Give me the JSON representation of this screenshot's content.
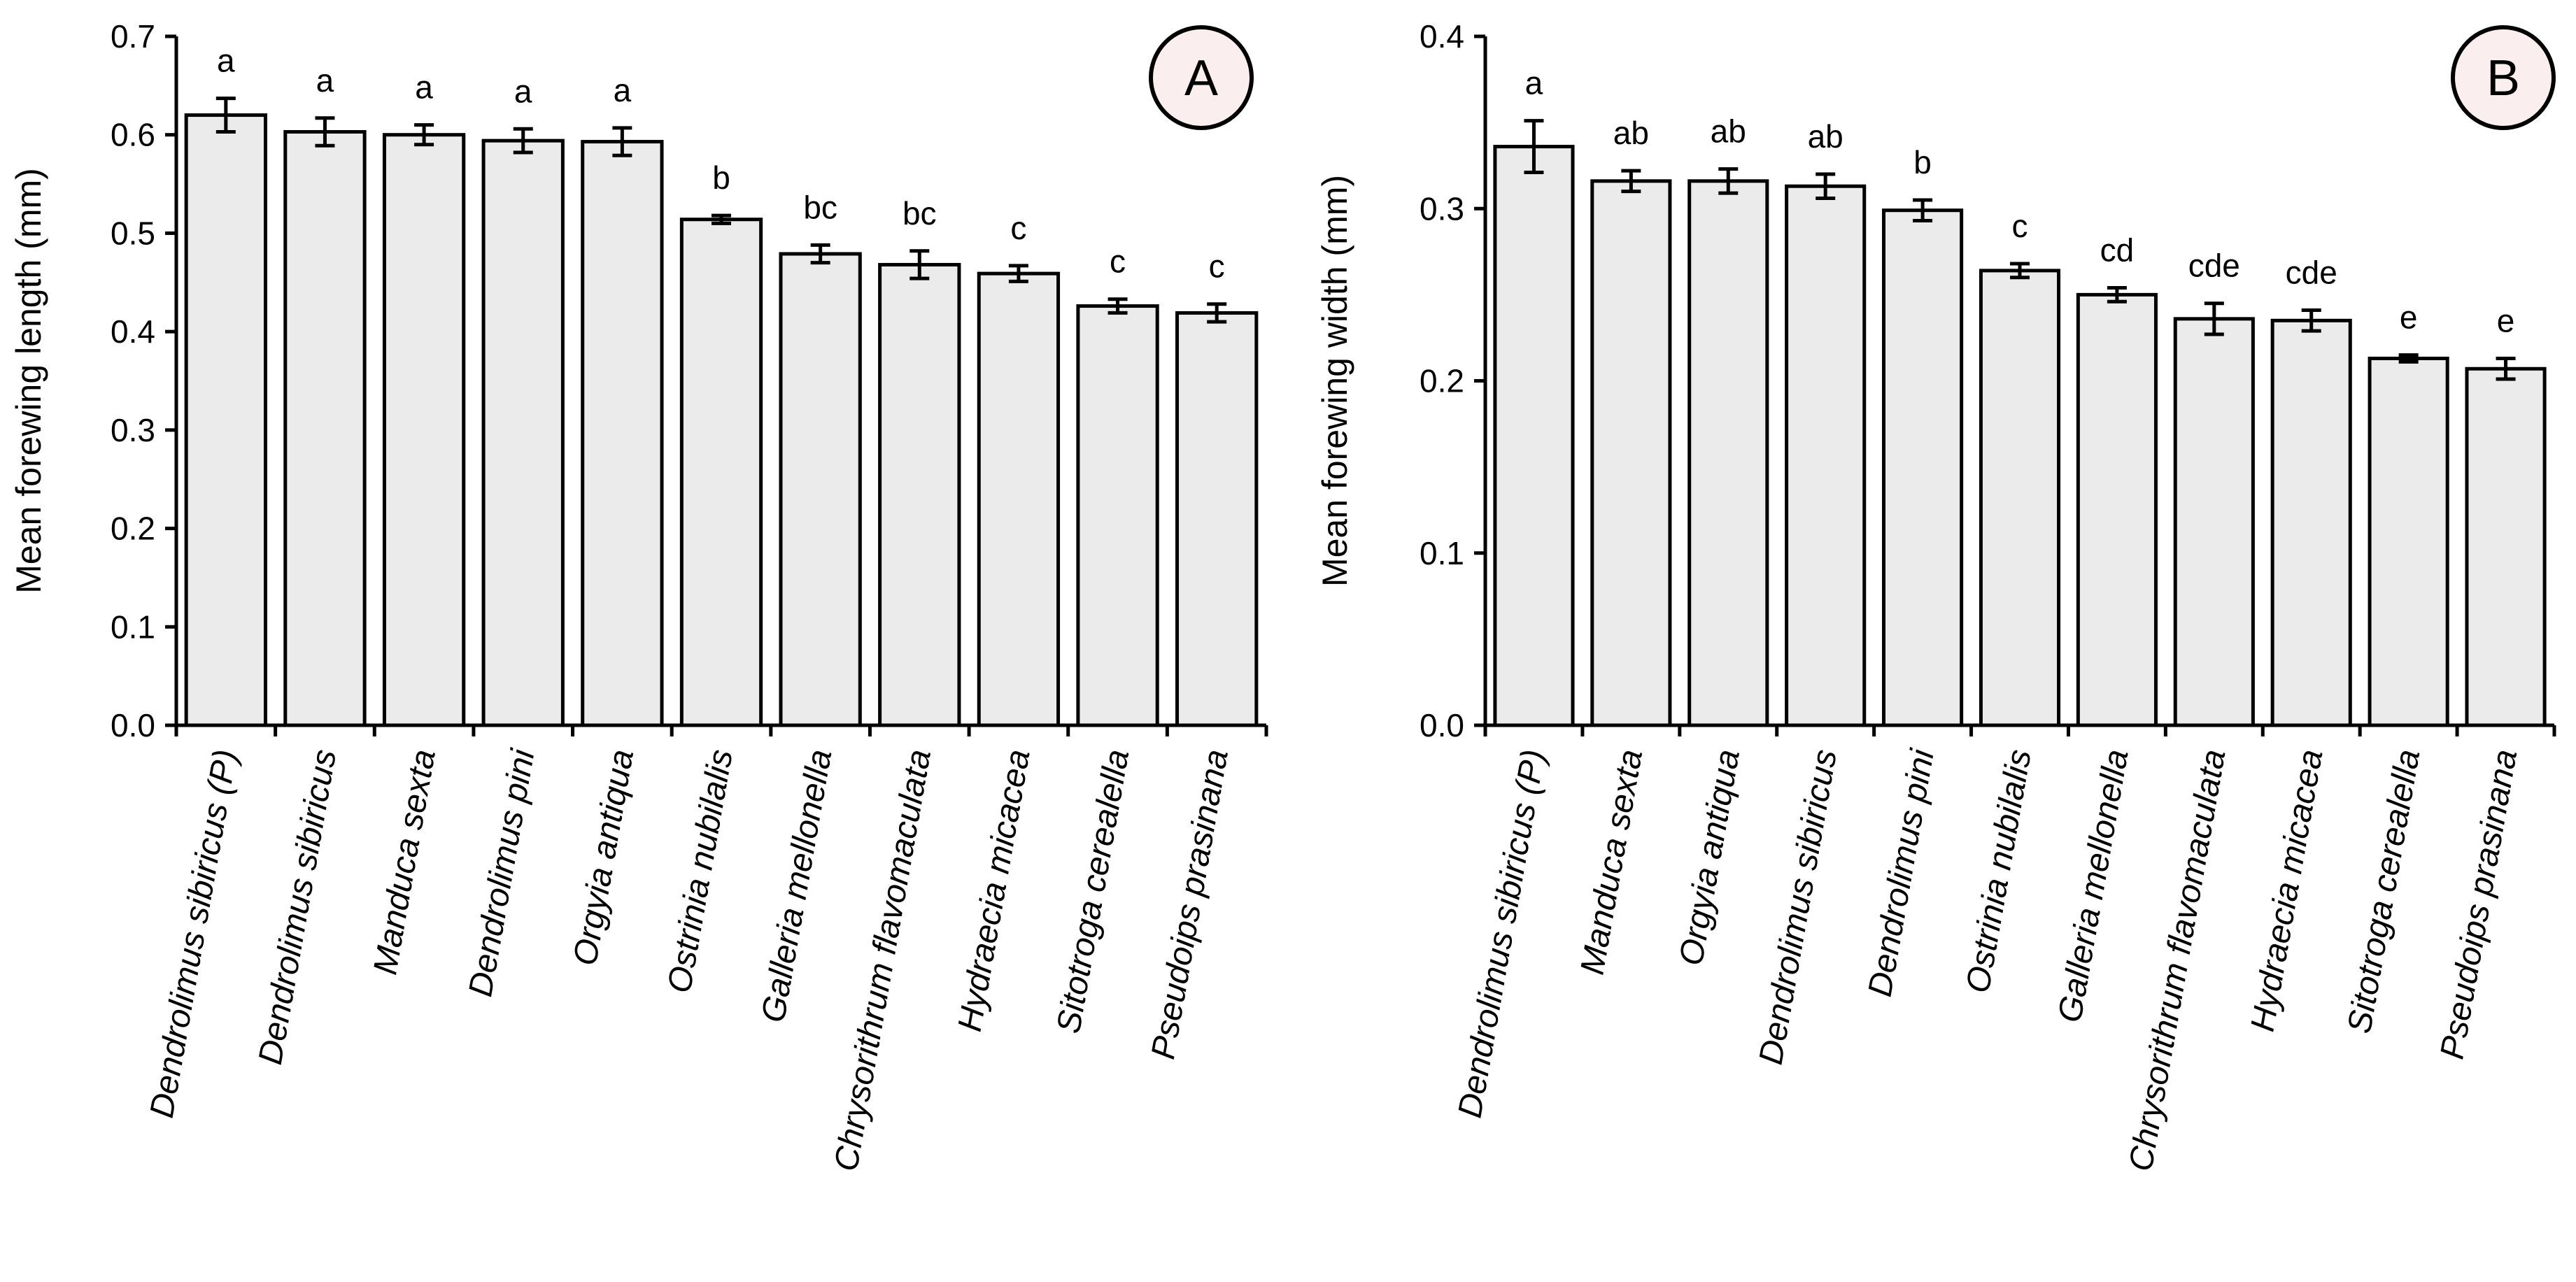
{
  "chart_data": [
    {
      "type": "bar",
      "panel_label": "A",
      "ylabel": "Mean forewing length (mm)",
      "xlabel": "",
      "ylim": [
        0,
        0.7
      ],
      "yticks": [
        "0.0",
        "0.1",
        "0.2",
        "0.3",
        "0.4",
        "0.5",
        "0.6",
        "0.7"
      ],
      "categories": [
        "Dendrolimus sibiricus (P)",
        "Dendrolimus sibiricus",
        "Manduca sexta",
        "Dendrolimus pini",
        "Orgyia antiqua",
        "Ostrinia nubilalis",
        "Galleria mellonella",
        "Chrysorithrum flavomaculata",
        "Hydraecia micacea",
        "Sitotroga cerealella",
        "Pseudoips prasinana"
      ],
      "values": [
        0.62,
        0.603,
        0.6,
        0.594,
        0.593,
        0.514,
        0.479,
        0.468,
        0.459,
        0.426,
        0.419
      ],
      "errors": [
        0.017,
        0.014,
        0.01,
        0.012,
        0.014,
        0.004,
        0.009,
        0.014,
        0.008,
        0.007,
        0.009
      ],
      "letters": [
        "a",
        "a",
        "a",
        "a",
        "a",
        "b",
        "bc",
        "bc",
        "c",
        "c",
        "c"
      ]
    },
    {
      "type": "bar",
      "panel_label": "B",
      "ylabel": "Mean forewing width (mm)",
      "xlabel": "",
      "ylim": [
        0,
        0.4
      ],
      "yticks": [
        "0.0",
        "0.1",
        "0.2",
        "0.3",
        "0.4"
      ],
      "categories": [
        "Dendrolimus sibiricus (P)",
        "Manduca sexta",
        "Orgyia antiqua",
        "Dendrolimus sibiricus",
        "Dendrolimus pini",
        "Ostrinia nubilalis",
        "Galleria mellonella",
        "Chrysorithrum flavomaculata",
        "Hydraecia micacea",
        "Sitotroga cerealella",
        "Pseudoips prasinana"
      ],
      "values": [
        0.336,
        0.316,
        0.316,
        0.313,
        0.299,
        0.264,
        0.25,
        0.236,
        0.235,
        0.213,
        0.207
      ],
      "errors": [
        0.015,
        0.006,
        0.007,
        0.007,
        0.006,
        0.004,
        0.004,
        0.009,
        0.006,
        0.002,
        0.006
      ],
      "letters": [
        "a",
        "ab",
        "ab",
        "ab",
        "b",
        "c",
        "cd",
        "cde",
        "cde",
        "e",
        "e"
      ]
    }
  ]
}
